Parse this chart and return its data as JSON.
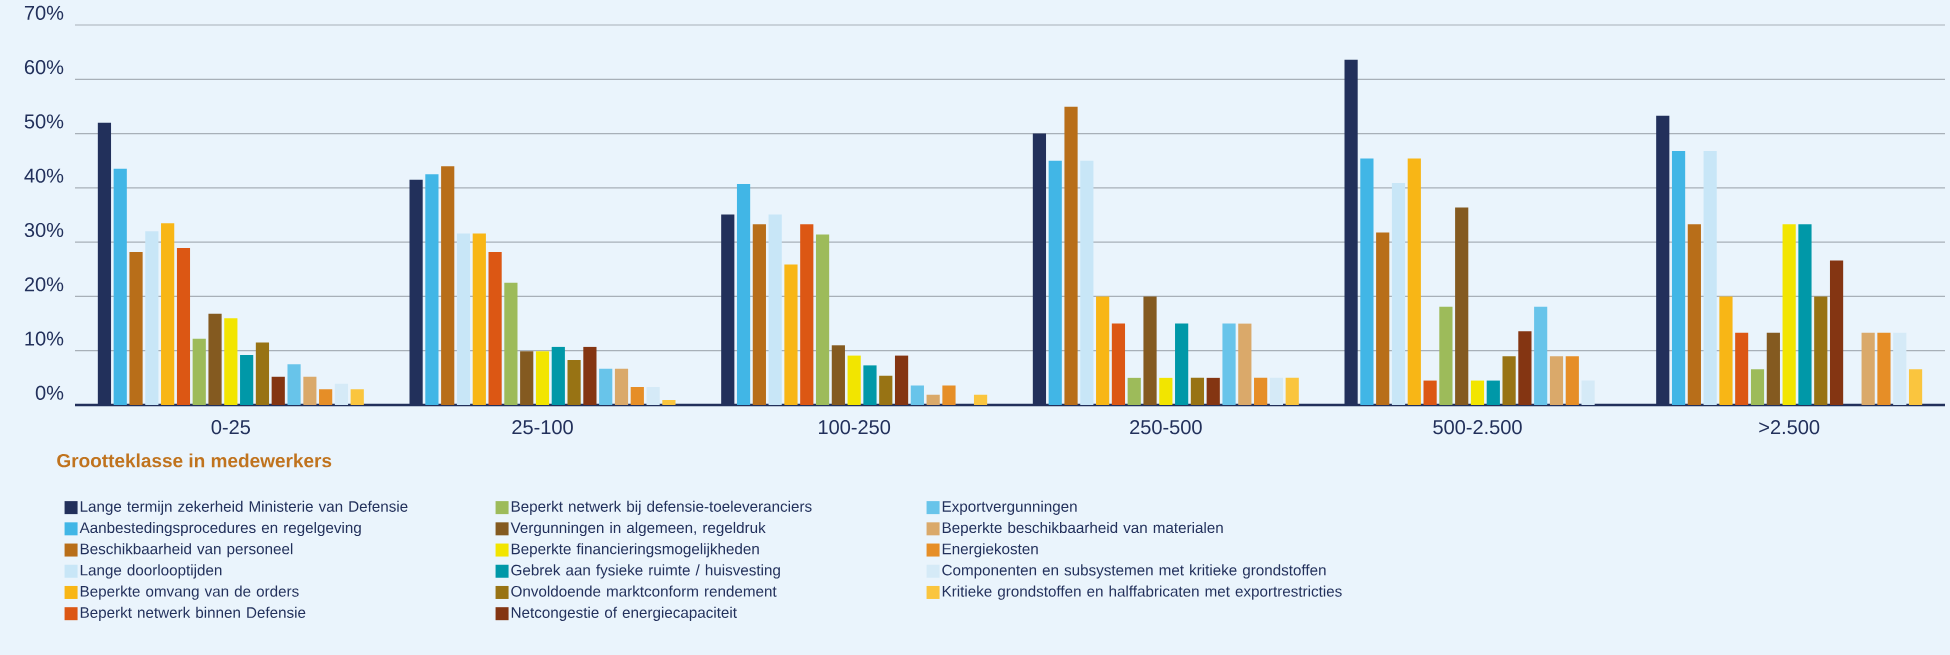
{
  "chart_data": {
    "type": "bar",
    "legend_title": "Grootteklasse in medewerkers",
    "categories": [
      "0-25",
      "25-100",
      "100-250",
      "250-500",
      "500-2.500",
      ">2.500"
    ],
    "ylim": [
      0,
      70
    ],
    "yticks": [
      {
        "value": 0,
        "label": "0%"
      },
      {
        "value": 10,
        "label": "10%"
      },
      {
        "value": 20,
        "label": "20%"
      },
      {
        "value": 30,
        "label": "30%"
      },
      {
        "value": 40,
        "label": "40%"
      },
      {
        "value": 50,
        "label": "50%"
      },
      {
        "value": 60,
        "label": "60%"
      },
      {
        "value": 70,
        "label": "70%"
      }
    ],
    "grid": "y",
    "legend": "bottom",
    "series": [
      {
        "name": "Lange termijn zekerheid Ministerie van Defensie",
        "color": "#22305b",
        "values": [
          52,
          41.5,
          35.1,
          50,
          63.6,
          53.3
        ]
      },
      {
        "name": "Aanbestedingsprocedures en regelgeving",
        "color": "#41b6e6",
        "values": [
          43.5,
          42.5,
          40.7,
          45,
          45.4,
          46.8
        ]
      },
      {
        "name": "Beschikbaarheid van personeel",
        "color": "#b86e19",
        "values": [
          28.2,
          44,
          33.3,
          55,
          31.8,
          33.3
        ]
      },
      {
        "name": "Lange doorlooptijden",
        "color": "#c8e6f7",
        "values": [
          32,
          31.6,
          35.1,
          45,
          40.9,
          46.8
        ]
      },
      {
        "name": "Beperkte omvang van de orders",
        "color": "#f8b616",
        "values": [
          33.5,
          31.6,
          25.9,
          20,
          45.4,
          20
        ]
      },
      {
        "name": "Beperkt netwerk binnen Defensie",
        "color": "#dc5714",
        "values": [
          28.9,
          28.2,
          33.3,
          15,
          4.5,
          13.3
        ]
      },
      {
        "name": "Beperkt netwerk bij defensie-toeleveranciers",
        "color": "#9dbb5a",
        "values": [
          12.2,
          22.5,
          31.4,
          5,
          18.1,
          6.6
        ]
      },
      {
        "name": "Vergunningen in algemeen, regeldruk",
        "color": "#845a20",
        "values": [
          16.8,
          9.9,
          11,
          20,
          36.4,
          13.3
        ]
      },
      {
        "name": "Beperkte financieringsmogelijkheden",
        "color": "#f2e500",
        "values": [
          16,
          9.9,
          9.1,
          5,
          4.5,
          33.3
        ]
      },
      {
        "name": "Gebrek aan fysieke ruimte / huisvesting",
        "color": "#0098a8",
        "values": [
          9.2,
          10.7,
          7.3,
          15,
          4.5,
          33.3
        ]
      },
      {
        "name": "Onvoldoende marktconform rendement",
        "color": "#987314",
        "values": [
          11.5,
          8.3,
          5.4,
          5,
          9,
          20
        ]
      },
      {
        "name": "Netcongestie of energiecapaciteit",
        "color": "#843512",
        "values": [
          5.2,
          10.7,
          9.1,
          5,
          13.6,
          26.6
        ]
      },
      {
        "name": "Exportvergunningen",
        "color": "#68c4ea",
        "values": [
          7.5,
          6.7,
          3.6,
          15,
          18.1,
          null
        ]
      },
      {
        "name": "Beperkte beschikbaarheid van materialen",
        "color": "#daa96a",
        "values": [
          5.2,
          6.7,
          1.9,
          15,
          9,
          13.3
        ]
      },
      {
        "name": "Energiekosten",
        "color": "#e68e27",
        "values": [
          2.9,
          3.3,
          3.6,
          5,
          9,
          13.3
        ]
      },
      {
        "name": "Componenten en subsystemen met kritieke grondstoffen",
        "color": "#d5eaf7",
        "values": [
          3.9,
          3.3,
          null,
          5,
          4.5,
          13.3
        ]
      },
      {
        "name": "Kritieke grondstoffen en halffabricaten met exportrestricties",
        "color": "#fac53e",
        "values": [
          2.9,
          0.9,
          1.9,
          5,
          null,
          6.6
        ]
      }
    ]
  }
}
